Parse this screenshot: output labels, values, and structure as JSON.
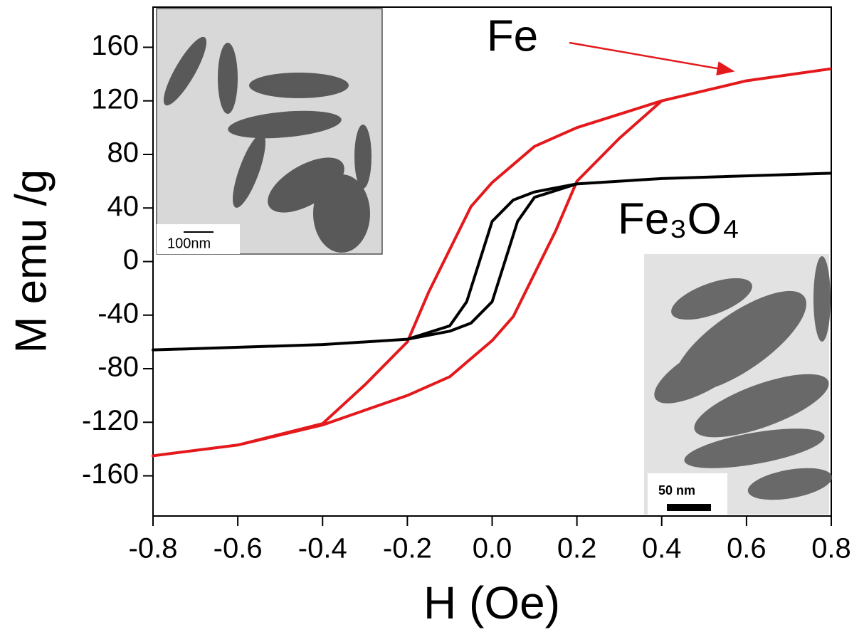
{
  "chart_data": {
    "type": "line",
    "xlabel": "H (Oe)",
    "ylabel": "M emu /g",
    "xlim": [
      -0.8,
      0.8
    ],
    "ylim": [
      -190,
      190
    ],
    "xticks": [
      -0.8,
      -0.6,
      -0.4,
      -0.2,
      {
        "value": 0,
        "label": "0.0"
      },
      0.2,
      0.4,
      0.6,
      0.8
    ],
    "yticks": [
      -160,
      -120,
      -80,
      -40,
      0,
      40,
      80,
      120,
      160
    ],
    "annotations": [
      "Fe",
      "Fe₃O₄"
    ],
    "inset_labels": [
      "100nm",
      "50 nm"
    ],
    "series": [
      {
        "name": "Fe",
        "color": "#e3191c",
        "x": [
          0.8,
          0.6,
          0.4,
          0.2,
          0.1,
          0,
          -0.05,
          -0.1,
          -0.15,
          -0.2,
          -0.3,
          -0.4,
          -0.6,
          -0.8,
          -0.6,
          -0.4,
          -0.2,
          -0.1,
          0,
          0.05,
          0.1,
          0.15,
          0.2,
          0.3,
          0.4,
          0.6,
          0.8
        ],
        "values": [
          144,
          135,
          120,
          100,
          86,
          59,
          41,
          9,
          -23,
          -60,
          -92,
          -121,
          -137,
          -145,
          -137,
          -122,
          -100,
          -86,
          -59,
          -41,
          -9,
          23,
          60,
          92,
          120,
          135,
          144
        ]
      },
      {
        "name": "Fe₃O₄",
        "color": "#000000",
        "x": [
          0.8,
          0.4,
          0.2,
          0.1,
          0.05,
          0,
          -0.03,
          -0.06,
          -0.1,
          -0.2,
          -0.4,
          -0.8,
          -0.4,
          -0.2,
          -0.1,
          -0.05,
          0,
          0.03,
          0.06,
          0.1,
          0.2,
          0.4,
          0.8
        ],
        "values": [
          66,
          62,
          58,
          52,
          46,
          30,
          0,
          -30,
          -48,
          -58,
          -62,
          -66,
          -62,
          -58,
          -52,
          -46,
          -30,
          0,
          30,
          48,
          58,
          62,
          66
        ]
      }
    ]
  }
}
